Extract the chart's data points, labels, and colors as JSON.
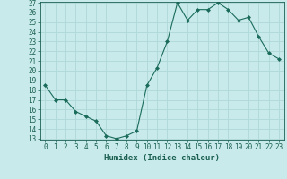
{
  "x": [
    0,
    1,
    2,
    3,
    4,
    5,
    6,
    7,
    8,
    9,
    10,
    11,
    12,
    13,
    14,
    15,
    16,
    17,
    18,
    19,
    20,
    21,
    22,
    23
  ],
  "y": [
    18.5,
    17.0,
    17.0,
    15.8,
    15.3,
    14.8,
    13.3,
    13.0,
    13.3,
    13.8,
    18.5,
    20.3,
    23.0,
    27.0,
    25.2,
    26.3,
    26.3,
    27.0,
    26.3,
    25.2,
    25.5,
    23.5,
    21.8,
    21.2
  ],
  "line_color": "#1a6b5a",
  "marker": "D",
  "marker_size": 2.0,
  "background_color": "#c8eaea",
  "grid_color": "#b0d8d8",
  "xlabel": "Humidex (Indice chaleur)",
  "ylim_min": 13,
  "ylim_max": 27,
  "xlim_min": -0.5,
  "xlim_max": 23.5,
  "yticks": [
    13,
    14,
    15,
    16,
    17,
    18,
    19,
    20,
    21,
    22,
    23,
    24,
    25,
    26,
    27
  ],
  "xticks": [
    0,
    1,
    2,
    3,
    4,
    5,
    6,
    7,
    8,
    9,
    10,
    11,
    12,
    13,
    14,
    15,
    16,
    17,
    18,
    19,
    20,
    21,
    22,
    23
  ],
  "tick_color": "#1a5f50",
  "label_fontsize": 6.5,
  "tick_fontsize": 5.5,
  "linewidth": 0.8
}
